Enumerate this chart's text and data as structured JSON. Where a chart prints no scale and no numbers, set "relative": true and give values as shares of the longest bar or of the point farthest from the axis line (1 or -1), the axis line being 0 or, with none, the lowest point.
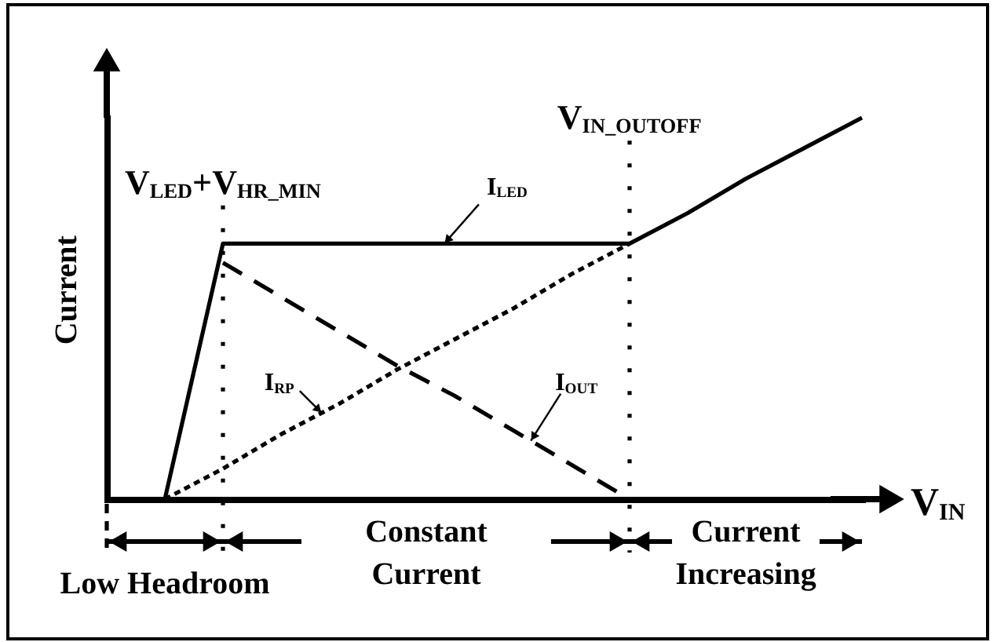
{
  "chart_data": {
    "type": "line",
    "relative": true,
    "ylabel": "Current",
    "xlabel": "V$_{IN}$",
    "categories": [
      null,
      null,
      null,
      null,
      null,
      null,
      null,
      null,
      null,
      null,
      null,
      null,
      null,
      null
    ],
    "series": [
      {
        "name": "I$_{LED}$",
        "color": "#000000",
        "line_style": "solid",
        "values": [
          null,
          0,
          0.67,
          0.67,
          0.67,
          0.67,
          0.67,
          0.67,
          0.67,
          0.67,
          0.75,
          0.84,
          0.92,
          1
        ]
      },
      {
        "name": "I$_{RP}$",
        "color": "#000000",
        "line_style": "dotted",
        "values": [
          null,
          0,
          0.08,
          0.17,
          0.25,
          0.34,
          0.42,
          0.5,
          0.59,
          0.67,
          null,
          null,
          null,
          null
        ]
      },
      {
        "name": "I$_{OUT}$",
        "color": "#000000",
        "line_style": "dashed",
        "values": [
          null,
          null,
          0.62,
          0.53,
          0.44,
          0.35,
          0.27,
          0.18,
          0.09,
          0,
          null,
          null,
          null,
          null
        ]
      }
    ],
    "annotations": [
      "V$_{LED}$+V$_{HR_MIN}$",
      "V$_{IN_OUTOFF}$",
      "Low Headroom",
      "Constant Current",
      "Current Increasing"
    ]
  }
}
